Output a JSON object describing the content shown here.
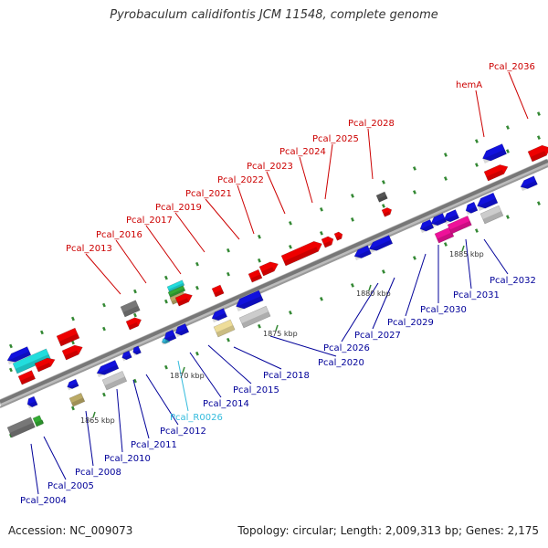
{
  "title": "Pyrobaculum calidifontis JCM 11548, complete genome",
  "footer": {
    "accession": "Accession: NC_009073",
    "summary": "Topology: circular; Length: 2,009,313 bp; Genes: 2,175"
  },
  "scale_ticks": [
    "1865 kbp",
    "1870 kbp",
    "1875 kbp",
    "1880 kbp",
    "1885 kbp"
  ],
  "colors": {
    "forward_label": "#cc0000",
    "reverse_label": "#000099",
    "rna_label": "#33bbdd",
    "backbone": "#888888"
  },
  "top_labels": [
    {
      "text": "Pcal_2013",
      "color": "#cc0000"
    },
    {
      "text": "Pcal_2016",
      "color": "#cc0000"
    },
    {
      "text": "Pcal_2017",
      "color": "#cc0000"
    },
    {
      "text": "Pcal_2019",
      "color": "#cc0000"
    },
    {
      "text": "Pcal_2021",
      "color": "#cc0000"
    },
    {
      "text": "Pcal_2022",
      "color": "#cc0000"
    },
    {
      "text": "Pcal_2023",
      "color": "#cc0000"
    },
    {
      "text": "Pcal_2024",
      "color": "#cc0000"
    },
    {
      "text": "Pcal_2025",
      "color": "#cc0000"
    },
    {
      "text": "Pcal_2028",
      "color": "#cc0000"
    },
    {
      "text": "hemA",
      "color": "#cc0000"
    },
    {
      "text": "Pcal_2036",
      "color": "#cc0000"
    }
  ],
  "bottom_labels": [
    {
      "text": "Pcal_2004",
      "color": "#000099"
    },
    {
      "text": "Pcal_2005",
      "color": "#000099"
    },
    {
      "text": "Pcal_2008",
      "color": "#000099"
    },
    {
      "text": "Pcal_2010",
      "color": "#000099"
    },
    {
      "text": "Pcal_2011",
      "color": "#000099"
    },
    {
      "text": "Pcal_2012",
      "color": "#000099"
    },
    {
      "text": "Pcal_R0026",
      "color": "#33bbdd"
    },
    {
      "text": "Pcal_2014",
      "color": "#000099"
    },
    {
      "text": "Pcal_2015",
      "color": "#000099"
    },
    {
      "text": "Pcal_2018",
      "color": "#000099"
    },
    {
      "text": "Pcal_2020",
      "color": "#000099"
    },
    {
      "text": "Pcal_2026",
      "color": "#000099"
    },
    {
      "text": "Pcal_2027",
      "color": "#000099"
    },
    {
      "text": "Pcal_2029",
      "color": "#000099"
    },
    {
      "text": "Pcal_2030",
      "color": "#000099"
    },
    {
      "text": "Pcal_2031",
      "color": "#000099"
    },
    {
      "text": "Pcal_2032",
      "color": "#000099"
    }
  ]
}
